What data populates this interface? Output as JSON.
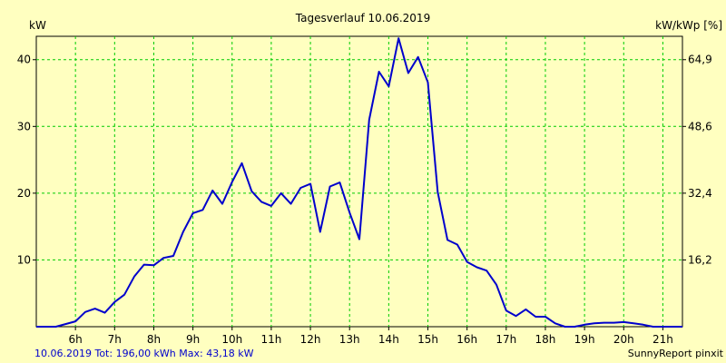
{
  "chart_data": {
    "type": "line",
    "title": "Tagesverlauf 10.06.2019",
    "ylabel_left": "kW",
    "ylabel_right": "kW/kWp [%]",
    "ylim": [
      0,
      43.5
    ],
    "x_range": [
      5.0,
      21.5
    ],
    "x_ticks": [
      {
        "value": 6,
        "label": "6h"
      },
      {
        "value": 7,
        "label": "7h"
      },
      {
        "value": 8,
        "label": "8h"
      },
      {
        "value": 9,
        "label": "9h"
      },
      {
        "value": 10,
        "label": "10h"
      },
      {
        "value": 11,
        "label": "11h"
      },
      {
        "value": 12,
        "label": "12h"
      },
      {
        "value": 13,
        "label": "13h"
      },
      {
        "value": 14,
        "label": "14h"
      },
      {
        "value": 15,
        "label": "15h"
      },
      {
        "value": 16,
        "label": "16h"
      },
      {
        "value": 17,
        "label": "17h"
      },
      {
        "value": 18,
        "label": "18h"
      },
      {
        "value": 19,
        "label": "19h"
      },
      {
        "value": 20,
        "label": "20h"
      },
      {
        "value": 21,
        "label": "21h"
      }
    ],
    "y_ticks_left": [
      {
        "value": 10,
        "label": "10"
      },
      {
        "value": 20,
        "label": "20"
      },
      {
        "value": 30,
        "label": "30"
      },
      {
        "value": 40,
        "label": "40"
      }
    ],
    "y_ticks_right": [
      {
        "value": 10,
        "label": "16,2"
      },
      {
        "value": 20,
        "label": "32,4"
      },
      {
        "value": 30,
        "label": "48,6"
      },
      {
        "value": 40,
        "label": "64,9"
      }
    ],
    "grid": true,
    "series": [
      {
        "color": "#0000cc",
        "x": [
          5.0,
          5.5,
          6.0,
          6.25,
          6.5,
          6.75,
          7.0,
          7.25,
          7.5,
          7.75,
          8.0,
          8.25,
          8.5,
          8.75,
          9.0,
          9.25,
          9.5,
          9.75,
          10.0,
          10.25,
          10.5,
          10.75,
          11.0,
          11.25,
          11.5,
          11.75,
          12.0,
          12.25,
          12.5,
          12.75,
          13.0,
          13.25,
          13.5,
          13.75,
          14.0,
          14.25,
          14.5,
          14.75,
          15.0,
          15.25,
          15.5,
          15.75,
          16.0,
          16.25,
          16.5,
          16.75,
          17.0,
          17.25,
          17.5,
          17.75,
          18.0,
          18.25,
          18.5,
          18.75,
          19.0,
          19.25,
          19.5,
          19.75,
          20.0,
          20.25,
          20.5,
          20.75,
          21.0,
          21.25,
          21.5
        ],
        "y": [
          0,
          0,
          0.8,
          2.2,
          2.7,
          2.1,
          3.7,
          4.8,
          7.5,
          9.3,
          9.2,
          10.3,
          10.6,
          14.2,
          17.0,
          17.5,
          20.4,
          18.4,
          21.7,
          24.5,
          20.3,
          18.7,
          18.1,
          20.0,
          18.4,
          20.8,
          21.4,
          14.2,
          21.0,
          21.6,
          17.1,
          13.1,
          31.0,
          38.2,
          36.0,
          43.2,
          38.0,
          40.4,
          36.6,
          20.2,
          13.0,
          12.3,
          9.7,
          8.9,
          8.4,
          6.3,
          2.4,
          1.6,
          2.6,
          1.5,
          1.5,
          0.5,
          0,
          0,
          0.3,
          0.5,
          0.6,
          0.6,
          0.7,
          0.5,
          0.3,
          0,
          0,
          0,
          0
        ]
      }
    ]
  },
  "footer": {
    "left": "10.06.2019 Tot: 196,00 kWh Max: 43,18 kW",
    "right": "SunnyReport pinxit"
  }
}
